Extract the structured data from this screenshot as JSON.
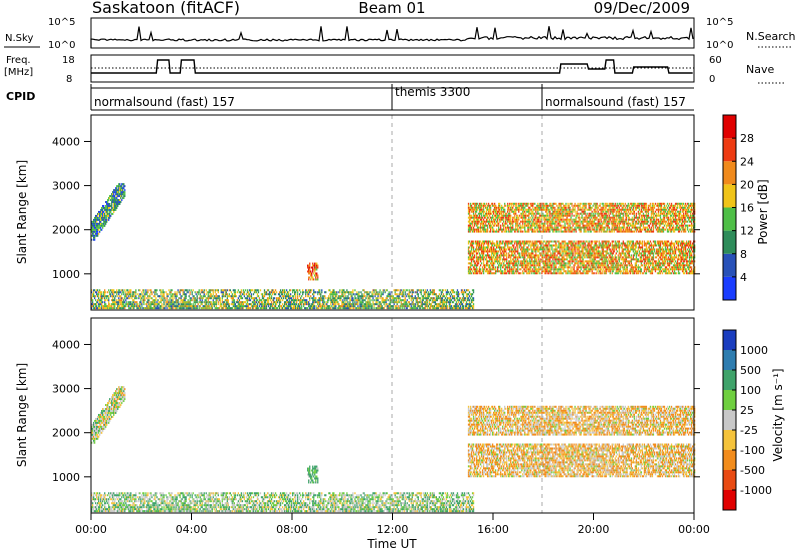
{
  "header": {
    "station": "Saskatoon (fitACF)",
    "beam": "Beam 01",
    "date": "09/Dec/2009"
  },
  "noise_panel": {
    "left_label": "N.Sky",
    "right_label": "N.Search",
    "left_ticks": [
      "10^5",
      "10^0"
    ],
    "right_ticks": [
      "10^5",
      "10^0"
    ]
  },
  "freq_panel": {
    "left_label_1": "Freq.",
    "left_label_2": "[MHz]",
    "right_label": "Nave",
    "left_ticks": [
      "18",
      "8"
    ],
    "right_ticks": [
      "60",
      "0"
    ]
  },
  "cpid": {
    "label": "CPID",
    "segments": [
      {
        "name": "normalsound (fast) 157",
        "start_hour": 0
      },
      {
        "name": "themis 3300",
        "start_hour": 12
      },
      {
        "name": "normalsound (fast) 157",
        "start_hour": 18
      }
    ]
  },
  "power_panel": {
    "ylabel": "Slant Range [km]",
    "cbar_label": "Power [dB]",
    "cbar_ticks": [
      "4",
      "8",
      "12",
      "16",
      "20",
      "24",
      "28"
    ],
    "cbar_colors": [
      "#1a3dff",
      "#2851b8",
      "#2e8c5a",
      "#4fbf47",
      "#f0c419",
      "#f08a1c",
      "#ee3b12",
      "#e00000"
    ]
  },
  "velocity_panel": {
    "ylabel": "Slant Range [km]",
    "cbar_label": "Velocity [m s⁻¹]",
    "cbar_ticks": [
      "1000",
      "500",
      "100",
      "25",
      "-25",
      "-100",
      "-500",
      "-1000"
    ],
    "cbar_colors": [
      "#1a3dbf",
      "#2e7db0",
      "#3fa36a",
      "#6fcf3f",
      "#c8c8c8",
      "#f5c33b",
      "#f28c1c",
      "#e84a12",
      "#e00000"
    ]
  },
  "x_axis": {
    "label": "Time UT",
    "ticks": [
      "00:00",
      "04:00",
      "08:00",
      "12:00",
      "16:00",
      "20:00",
      "00:00"
    ]
  },
  "chart_data": {
    "type": "heatmap",
    "title": "Saskatoon (fitACF) Beam 01 09/Dec/2009",
    "xlabel": "Time UT",
    "ylabel": "Slant Range [km]",
    "xlim": [
      0,
      24
    ],
    "ylim": [
      180,
      4600
    ],
    "yticks": [
      1000,
      2000,
      3000,
      4000
    ],
    "grid": false,
    "x_dashed_lines": [
      12,
      18
    ],
    "panels": [
      {
        "name": "Power [dB]",
        "range": [
          0,
          30
        ]
      },
      {
        "name": "Velocity [m s-1]",
        "range": [
          -1000,
          1000
        ]
      }
    ],
    "echo_regions": [
      {
        "t0": 0.0,
        "t1": 1.35,
        "r0": 1750,
        "r1": 3050,
        "power_db": 10,
        "velocity": 5
      },
      {
        "t0": 0.0,
        "t1": 15.2,
        "r0": 200,
        "r1": 650,
        "power_db": 14,
        "velocity": 30
      },
      {
        "t0": 8.6,
        "t1": 9.0,
        "r0": 850,
        "r1": 1250,
        "power_db": 22,
        "velocity": 80
      },
      {
        "t0": 15.0,
        "t1": 24.0,
        "r0": 900,
        "r1": 2700,
        "power_db": 20,
        "velocity": -40
      }
    ],
    "noise_sky_level": "≈10^0 to 10^5 (log)",
    "freq_mhz_base": 10,
    "freq_mhz_high": 16
  }
}
